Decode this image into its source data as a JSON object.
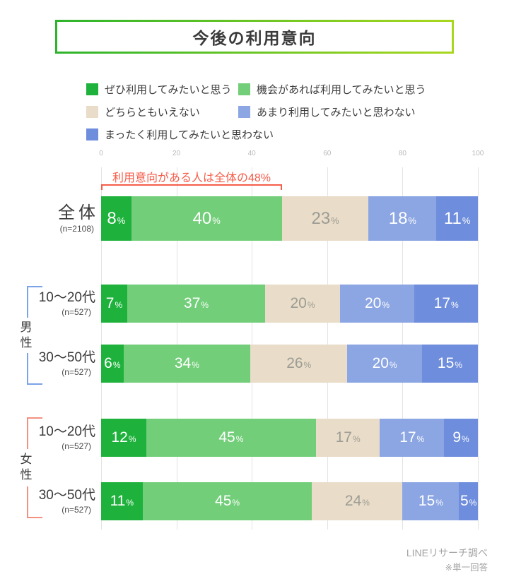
{
  "title": "今後の利用意向",
  "legend": [
    {
      "label": "ぜひ利用してみたいと思う",
      "color": "#1eb23c"
    },
    {
      "label": "機会があれば利用してみたいと思う",
      "color": "#72ce79"
    },
    {
      "label": "どちらともいえない",
      "color": "#e9dcc8"
    },
    {
      "label": "あまり利用してみたいと思わない",
      "color": "#8ca6e3"
    },
    {
      "label": "まったく利用してみたいと思わない",
      "color": "#6e8ddc"
    }
  ],
  "annotation": {
    "text": "利用意向がある人は全体の48%",
    "span_pct": 48,
    "color": "#f55c49"
  },
  "chart_data": {
    "type": "bar",
    "stacked": true,
    "orientation": "horizontal",
    "unit": "%",
    "xlim": [
      0,
      100
    ],
    "x_ticks": [
      0,
      20,
      40,
      60,
      80,
      100
    ],
    "series": [
      "ぜひ利用してみたいと思う",
      "機会があれば利用してみたいと思う",
      "どちらともいえない",
      "あまり利用してみたいと思わない",
      "まったく利用してみたいと思わない"
    ],
    "rows": [
      {
        "label": "全体",
        "n": "(n=2108)",
        "group": null,
        "values": [
          8,
          40,
          23,
          18,
          11
        ]
      },
      {
        "label": "10〜20代",
        "n": "(n=527)",
        "group": "男性",
        "values": [
          7,
          37,
          20,
          20,
          17
        ]
      },
      {
        "label": "30〜50代",
        "n": "(n=527)",
        "group": "男性",
        "values": [
          6,
          34,
          26,
          20,
          15
        ]
      },
      {
        "label": "10〜20代",
        "n": "(n=527)",
        "group": "女性",
        "values": [
          12,
          45,
          17,
          17,
          9
        ]
      },
      {
        "label": "30〜50代",
        "n": "(n=527)",
        "group": "女性",
        "values": [
          11,
          45,
          24,
          15,
          5
        ]
      }
    ]
  },
  "groups": [
    {
      "label": "男性",
      "color": "#7ba3e8"
    },
    {
      "label": "女性",
      "color": "#f29180"
    }
  ],
  "footer": {
    "line1": "LINEリサーチ調べ",
    "line2": "※単一回答"
  }
}
